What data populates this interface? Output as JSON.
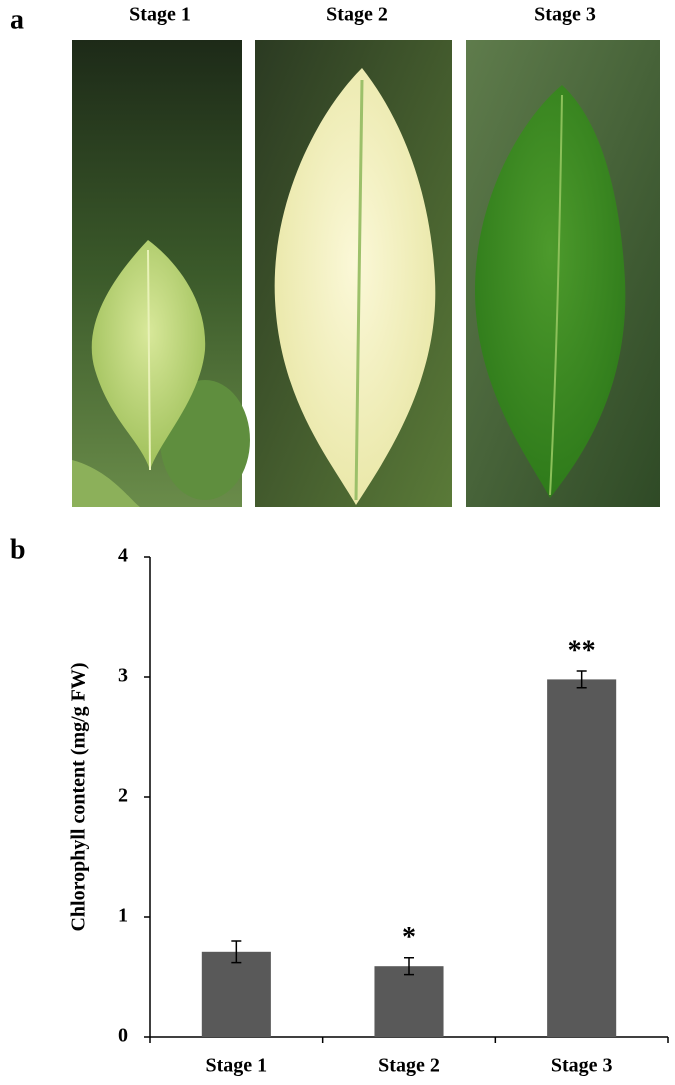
{
  "panels": {
    "a": {
      "label": "a",
      "stages": [
        "Stage 1",
        "Stage 2",
        "Stage 3"
      ]
    },
    "b": {
      "label": "b"
    }
  },
  "chart_data": {
    "type": "bar",
    "y_label": "Chlorophyll  content  (mg/g  FW)",
    "categories": [
      "Stage 1",
      "Stage 2",
      "Stage 3"
    ],
    "values": [
      0.71,
      0.59,
      2.98
    ],
    "errors": [
      0.09,
      0.07,
      0.07
    ],
    "significance": [
      null,
      "*",
      "**"
    ],
    "color": "#595959",
    "ylim": [
      0,
      4
    ],
    "yticks": [
      0,
      1,
      2,
      3,
      4
    ],
    "grid": false
  }
}
